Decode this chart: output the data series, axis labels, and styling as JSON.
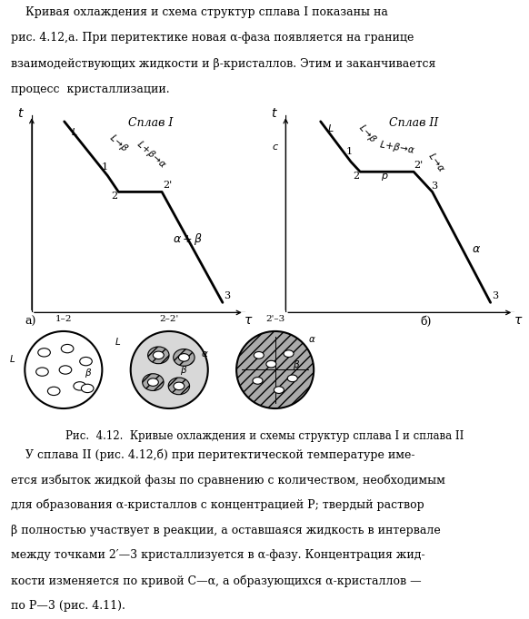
{
  "top_text_lines": [
    "    Кривая охлаждения и схема структур сплава I показаны на",
    "рис. 4.12,а. При перитектике новая α-фаза появляется на границе",
    "взаимодействующих жидкости и β-кристаллов. Этим и заканчивается",
    "процесс  кристаллизации."
  ],
  "bottom_text_lines": [
    "    У сплава II (рис. 4.12,б) при перитектической температуре име-",
    "ется избыток жидкой фазы по сравнению с количеством, необходимым",
    "для образования α-кристаллов с концентрацией Р; твердый раствор",
    "β полностью участвует в реакции, а оставшаяся жидкость в интервале",
    "между точками 2′—3 кристаллизуется в α-фазу. Концентрация жид-",
    "кости изменяется по кривой С—α, а образующихся α-кристаллов —",
    "по Р—3 (рис. 4.11)."
  ],
  "caption": "Рис.  4.12.  Кривые охлаждения и схемы структур сплава I и сплава II",
  "bg_color": "#ffffff"
}
